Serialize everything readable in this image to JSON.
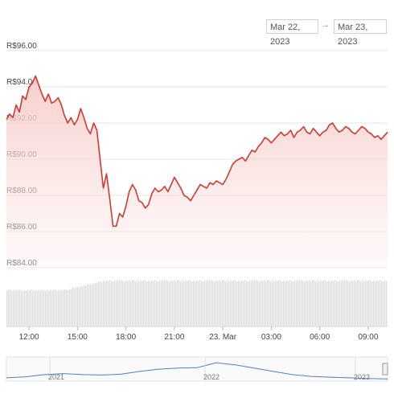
{
  "range_selector": {
    "from": "Mar 22, 2023",
    "arrow": "→",
    "to": "Mar 23, 2023"
  },
  "colors": {
    "line": "#d03a32",
    "area_top": "#f6c9c5",
    "volume": "#dcdcdc",
    "navigator": "#5a7fb6",
    "grid": "#e6e6e6"
  },
  "chart_data": {
    "type": "line",
    "title": "",
    "xlabel": "",
    "ylabel": "",
    "ylim": [
      84,
      96
    ],
    "y_ticks": [
      "R$96.00",
      "R$94.00",
      "R$92.00",
      "R$90.00",
      "R$88.00",
      "R$86.00",
      "R$84.00"
    ],
    "x_ticks": [
      "12:00",
      "15:00",
      "18:00",
      "21:00",
      "23. Mar",
      "03:00",
      "06:00",
      "09:00"
    ],
    "x_range_hours": [
      10.6,
      34.2
    ],
    "series": [
      {
        "values": [
          [
            10.6,
            92.2
          ],
          [
            10.8,
            92.5
          ],
          [
            11.0,
            92.3
          ],
          [
            11.2,
            93.0
          ],
          [
            11.4,
            92.6
          ],
          [
            11.6,
            93.5
          ],
          [
            11.8,
            93.3
          ],
          [
            12.0,
            94.0
          ],
          [
            12.2,
            94.2
          ],
          [
            12.4,
            94.6
          ],
          [
            12.6,
            94.1
          ],
          [
            12.8,
            93.6
          ],
          [
            13.0,
            93.2
          ],
          [
            13.2,
            93.6
          ],
          [
            13.4,
            93.1
          ],
          [
            13.6,
            93.2
          ],
          [
            13.8,
            93.4
          ],
          [
            14.0,
            93.0
          ],
          [
            14.2,
            92.4
          ],
          [
            14.4,
            92.0
          ],
          [
            14.6,
            92.3
          ],
          [
            14.8,
            91.9
          ],
          [
            15.0,
            92.2
          ],
          [
            15.2,
            92.8
          ],
          [
            15.4,
            92.3
          ],
          [
            15.6,
            91.7
          ],
          [
            15.8,
            91.4
          ],
          [
            16.0,
            92.0
          ],
          [
            16.2,
            91.6
          ],
          [
            16.4,
            90.0
          ],
          [
            16.6,
            88.4
          ],
          [
            16.8,
            89.2
          ],
          [
            17.0,
            87.8
          ],
          [
            17.2,
            86.3
          ],
          [
            17.4,
            86.3
          ],
          [
            17.6,
            87.0
          ],
          [
            17.8,
            86.8
          ],
          [
            18.0,
            87.4
          ],
          [
            18.2,
            88.2
          ],
          [
            18.4,
            88.6
          ],
          [
            18.6,
            88.3
          ],
          [
            18.8,
            87.7
          ],
          [
            19.0,
            87.6
          ],
          [
            19.2,
            87.3
          ],
          [
            19.4,
            87.5
          ],
          [
            19.6,
            88.1
          ],
          [
            19.8,
            88.4
          ],
          [
            20.0,
            88.2
          ],
          [
            20.2,
            88.3
          ],
          [
            20.4,
            88.5
          ],
          [
            20.6,
            88.2
          ],
          [
            20.8,
            88.6
          ],
          [
            21.0,
            89.0
          ],
          [
            21.2,
            88.7
          ],
          [
            21.4,
            88.4
          ],
          [
            21.6,
            88.0
          ],
          [
            21.8,
            87.9
          ],
          [
            22.0,
            87.7
          ],
          [
            22.2,
            88.0
          ],
          [
            22.4,
            88.3
          ],
          [
            22.6,
            88.6
          ],
          [
            22.8,
            88.5
          ],
          [
            23.0,
            88.4
          ],
          [
            23.2,
            88.7
          ],
          [
            23.4,
            88.6
          ],
          [
            23.6,
            88.8
          ],
          [
            23.8,
            88.7
          ],
          [
            24.0,
            88.6
          ],
          [
            24.2,
            88.9
          ],
          [
            24.4,
            89.3
          ],
          [
            24.6,
            89.7
          ],
          [
            24.8,
            89.9
          ],
          [
            25.0,
            90.0
          ],
          [
            25.2,
            90.1
          ],
          [
            25.4,
            89.9
          ],
          [
            25.6,
            90.2
          ],
          [
            25.8,
            90.5
          ],
          [
            26.0,
            90.4
          ],
          [
            26.2,
            90.7
          ],
          [
            26.4,
            90.9
          ],
          [
            26.6,
            91.2
          ],
          [
            26.8,
            91.1
          ],
          [
            27.0,
            90.9
          ],
          [
            27.2,
            91.1
          ],
          [
            27.4,
            91.3
          ],
          [
            27.6,
            91.5
          ],
          [
            27.8,
            91.3
          ],
          [
            28.0,
            91.4
          ],
          [
            28.2,
            91.6
          ],
          [
            28.4,
            91.2
          ],
          [
            28.6,
            91.5
          ],
          [
            28.8,
            91.6
          ],
          [
            29.0,
            91.8
          ],
          [
            29.2,
            91.5
          ],
          [
            29.4,
            91.4
          ],
          [
            29.6,
            91.7
          ],
          [
            29.8,
            91.5
          ],
          [
            30.0,
            91.3
          ],
          [
            30.2,
            91.5
          ],
          [
            30.4,
            91.6
          ],
          [
            30.6,
            91.9
          ],
          [
            30.8,
            92.0
          ],
          [
            31.0,
            91.7
          ],
          [
            31.2,
            91.5
          ],
          [
            31.4,
            91.6
          ],
          [
            31.6,
            91.8
          ],
          [
            31.8,
            91.7
          ],
          [
            32.0,
            91.5
          ],
          [
            32.2,
            91.4
          ],
          [
            32.4,
            91.6
          ],
          [
            32.6,
            91.8
          ],
          [
            32.8,
            91.7
          ],
          [
            33.0,
            91.5
          ],
          [
            33.2,
            91.4
          ],
          [
            33.4,
            91.2
          ],
          [
            33.6,
            91.3
          ],
          [
            33.8,
            91.1
          ],
          [
            34.0,
            91.3
          ],
          [
            34.2,
            91.5
          ]
        ]
      }
    ],
    "volume": {
      "type": "bar",
      "ylim": [
        0,
        1
      ],
      "levels": [
        0.72,
        0.8,
        0.92
      ]
    },
    "navigator": {
      "labels": [
        "2021",
        "2022",
        "2023"
      ],
      "values": [
        0.15,
        0.2,
        0.3,
        0.35,
        0.3,
        0.28,
        0.32,
        0.45,
        0.55,
        0.6,
        0.62,
        0.85,
        0.75,
        0.6,
        0.45,
        0.3,
        0.22,
        0.18,
        0.15,
        0.12,
        0.1
      ]
    }
  }
}
